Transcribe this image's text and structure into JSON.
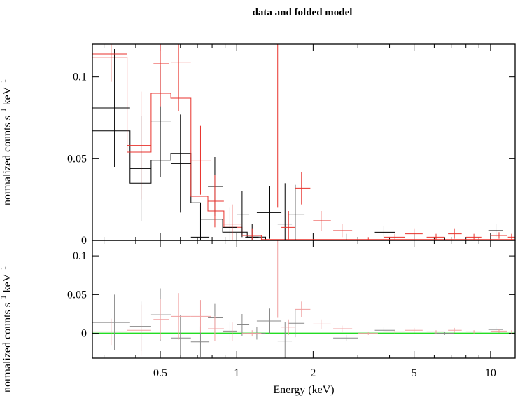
{
  "chart_data": {
    "type": "scatter",
    "title": "data and folded model",
    "xlabel": "Energy (keV)",
    "xscale": "log",
    "xlim": [
      0.27,
      12.5
    ],
    "x_ticks": [
      {
        "value": 0.5,
        "label": "0.5"
      },
      {
        "value": 1,
        "label": "1"
      },
      {
        "value": 2,
        "label": "2"
      },
      {
        "value": 5,
        "label": "5"
      },
      {
        "value": 10,
        "label": "10"
      }
    ],
    "panels": [
      {
        "name": "top",
        "ylabel_main": "normalized counts s",
        "ylabel_sup": "−1",
        "ylabel_unit": " keV",
        "ylim": [
          0,
          0.12
        ],
        "y_ticks": [
          {
            "value": 0,
            "label": "0"
          },
          {
            "value": 0.05,
            "label": "0.05"
          },
          {
            "value": 0.1,
            "label": "0.1"
          }
        ],
        "series": [
          {
            "color": "#000000",
            "data": [
              {
                "x": 0.33,
                "xlo": 0.27,
                "xhi": 0.38,
                "y": 0.081,
                "err": 0.036
              },
              {
                "x": 0.42,
                "xlo": 0.38,
                "xhi": 0.46,
                "y": 0.044,
                "err": 0.032
              },
              {
                "x": 0.5,
                "xlo": 0.46,
                "xhi": 0.55,
                "y": 0.073,
                "err": 0.034
              },
              {
                "x": 0.6,
                "xlo": 0.55,
                "xhi": 0.66,
                "y": 0.047,
                "err": 0.03
              },
              {
                "x": 0.72,
                "xlo": 0.66,
                "xhi": 0.78,
                "y": 0.002,
                "err": 0.02
              },
              {
                "x": 0.82,
                "xlo": 0.77,
                "xhi": 0.88,
                "y": 0.033,
                "err": 0.018
              },
              {
                "x": 0.94,
                "xlo": 0.88,
                "xhi": 1.0,
                "y": 0.008,
                "err": 0.012
              },
              {
                "x": 1.05,
                "xlo": 1.0,
                "xhi": 1.12,
                "y": 0.016,
                "err": 0.014
              },
              {
                "x": 1.15,
                "xlo": 1.08,
                "xhi": 1.22,
                "y": 0.002,
                "err": 0.008
              },
              {
                "x": 1.35,
                "xlo": 1.2,
                "xhi": 1.5,
                "y": 0.017,
                "err": 0.016
              },
              {
                "x": 1.55,
                "xlo": 1.45,
                "xhi": 1.65,
                "y": 0.01,
                "err": 0.025
              },
              {
                "x": 1.7,
                "xlo": 1.6,
                "xhi": 1.85,
                "y": 0.016,
                "err": 0.018
              },
              {
                "x": 2.7,
                "xlo": 2.4,
                "xhi": 3.0,
                "y": 0.0,
                "err": 0.004
              },
              {
                "x": 3.8,
                "xlo": 3.5,
                "xhi": 4.2,
                "y": 0.005,
                "err": 0.004
              },
              {
                "x": 6.6,
                "xlo": 6.0,
                "xhi": 7.2,
                "y": 0.0,
                "err": 0.002
              },
              {
                "x": 10.5,
                "xlo": 9.8,
                "xhi": 11.2,
                "y": 0.006,
                "err": 0.004
              }
            ]
          },
          {
            "color": "#e8322c",
            "data": [
              {
                "x": 0.32,
                "xlo": 0.27,
                "xhi": 0.37,
                "y": 0.114,
                "err": 0.017
              },
              {
                "x": 0.42,
                "xlo": 0.37,
                "xhi": 0.46,
                "y": 0.058,
                "err": 0.033
              },
              {
                "x": 0.5,
                "xlo": 0.47,
                "xhi": 0.54,
                "y": 0.108,
                "err": 0.026
              },
              {
                "x": 0.59,
                "xlo": 0.55,
                "xhi": 0.66,
                "y": 0.109,
                "err": 0.03
              },
              {
                "x": 0.72,
                "xlo": 0.66,
                "xhi": 0.79,
                "y": 0.049,
                "err": 0.021
              },
              {
                "x": 0.82,
                "xlo": 0.77,
                "xhi": 0.89,
                "y": 0.024,
                "err": 0.016
              },
              {
                "x": 0.96,
                "xlo": 0.88,
                "xhi": 1.05,
                "y": 0.01,
                "err": 0.012
              },
              {
                "x": 1.15,
                "xlo": 1.05,
                "xhi": 1.25,
                "y": 0.003,
                "err": 0.004
              },
              {
                "x": 1.45,
                "xlo": 1.45,
                "xhi": 1.45,
                "y": 0.08,
                "err": 0.06
              },
              {
                "x": 1.6,
                "xlo": 1.5,
                "xhi": 1.7,
                "y": 0.008,
                "err": 0.01
              },
              {
                "x": 1.8,
                "xlo": 1.7,
                "xhi": 1.95,
                "y": 0.032,
                "err": 0.01
              },
              {
                "x": 2.15,
                "xlo": 2.0,
                "xhi": 2.35,
                "y": 0.012,
                "err": 0.006
              },
              {
                "x": 2.6,
                "xlo": 2.4,
                "xhi": 2.85,
                "y": 0.006,
                "err": 0.004
              },
              {
                "x": 3.3,
                "xlo": 3.0,
                "xhi": 3.6,
                "y": 0.0,
                "err": 0.002
              },
              {
                "x": 4.2,
                "xlo": 3.8,
                "xhi": 4.6,
                "y": 0.002,
                "err": 0.002
              },
              {
                "x": 5.0,
                "xlo": 4.6,
                "xhi": 5.4,
                "y": 0.004,
                "err": 0.003
              },
              {
                "x": 6.1,
                "xlo": 5.6,
                "xhi": 6.6,
                "y": 0.002,
                "err": 0.002
              },
              {
                "x": 7.2,
                "xlo": 6.8,
                "xhi": 7.7,
                "y": 0.004,
                "err": 0.003
              },
              {
                "x": 8.6,
                "xlo": 8.0,
                "xhi": 9.2,
                "y": 0.002,
                "err": 0.002
              },
              {
                "x": 10.8,
                "xlo": 10.0,
                "xhi": 11.6,
                "y": 0.003,
                "err": 0.002
              },
              {
                "x": 12.1,
                "xlo": 11.7,
                "xhi": 12.5,
                "y": 0.002,
                "err": 0.002
              }
            ]
          }
        ],
        "models": [
          {
            "color": "#000000",
            "steps": [
              {
                "x0": 0.27,
                "x1": 0.38,
                "y": 0.067
              },
              {
                "x0": 0.38,
                "x1": 0.46,
                "y": 0.035
              },
              {
                "x0": 0.46,
                "x1": 0.55,
                "y": 0.049
              },
              {
                "x0": 0.55,
                "x1": 0.66,
                "y": 0.053
              },
              {
                "x0": 0.66,
                "x1": 0.72,
                "y": 0.023
              },
              {
                "x0": 0.72,
                "x1": 0.88,
                "y": 0.013
              },
              {
                "x0": 0.88,
                "x1": 1.1,
                "y": 0.005
              },
              {
                "x0": 1.1,
                "x1": 1.3,
                "y": 0.002
              },
              {
                "x0": 1.3,
                "x1": 12.5,
                "y": 0.0003
              }
            ]
          },
          {
            "color": "#e8322c",
            "steps": [
              {
                "x0": 0.27,
                "x1": 0.37,
                "y": 0.112
              },
              {
                "x0": 0.37,
                "x1": 0.46,
                "y": 0.054
              },
              {
                "x0": 0.46,
                "x1": 0.55,
                "y": 0.09
              },
              {
                "x0": 0.55,
                "x1": 0.66,
                "y": 0.087
              },
              {
                "x0": 0.66,
                "x1": 0.77,
                "y": 0.027
              },
              {
                "x0": 0.77,
                "x1": 0.89,
                "y": 0.018
              },
              {
                "x0": 0.89,
                "x1": 1.05,
                "y": 0.008
              },
              {
                "x0": 1.05,
                "x1": 1.25,
                "y": 0.003
              },
              {
                "x0": 1.25,
                "x1": 12.5,
                "y": 0.0005
              }
            ]
          }
        ]
      },
      {
        "name": "bottom",
        "ylabel_main": "normalized counts s",
        "ylabel_sup": "−1",
        "ylabel_unit": " keV",
        "ylim": [
          -0.032,
          0.12
        ],
        "y_ticks": [
          {
            "value": 0,
            "label": "0"
          },
          {
            "value": 0.05,
            "label": "0.05"
          },
          {
            "value": 0.1,
            "label": "0.1"
          }
        ],
        "zero_line_color": "#22dd22",
        "series": [
          {
            "color": "#888888",
            "data": [
              {
                "x": 0.33,
                "xlo": 0.27,
                "xhi": 0.38,
                "y": 0.014,
                "err": 0.036
              },
              {
                "x": 0.42,
                "xlo": 0.38,
                "xhi": 0.46,
                "y": 0.009,
                "err": 0.032
              },
              {
                "x": 0.5,
                "xlo": 0.46,
                "xhi": 0.55,
                "y": 0.024,
                "err": 0.034
              },
              {
                "x": 0.6,
                "xlo": 0.55,
                "xhi": 0.66,
                "y": -0.006,
                "err": 0.03
              },
              {
                "x": 0.72,
                "xlo": 0.66,
                "xhi": 0.78,
                "y": -0.011,
                "err": 0.02
              },
              {
                "x": 0.82,
                "xlo": 0.77,
                "xhi": 0.88,
                "y": 0.02,
                "err": 0.018
              },
              {
                "x": 0.94,
                "xlo": 0.88,
                "xhi": 1.0,
                "y": 0.003,
                "err": 0.012
              },
              {
                "x": 1.05,
                "xlo": 1.0,
                "xhi": 1.12,
                "y": 0.011,
                "err": 0.014
              },
              {
                "x": 1.2,
                "xlo": 1.1,
                "xhi": 1.3,
                "y": 0.0,
                "err": 0.008
              },
              {
                "x": 1.35,
                "xlo": 1.2,
                "xhi": 1.5,
                "y": 0.016,
                "err": 0.016
              },
              {
                "x": 1.55,
                "xlo": 1.45,
                "xhi": 1.65,
                "y": -0.01,
                "err": 0.025
              },
              {
                "x": 1.7,
                "xlo": 1.6,
                "xhi": 1.85,
                "y": 0.013,
                "err": 0.018
              },
              {
                "x": 2.7,
                "xlo": 2.4,
                "xhi": 3.0,
                "y": -0.006,
                "err": 0.004
              },
              {
                "x": 3.8,
                "xlo": 3.5,
                "xhi": 4.2,
                "y": 0.004,
                "err": 0.004
              },
              {
                "x": 6.6,
                "xlo": 6.0,
                "xhi": 7.2,
                "y": 0.0,
                "err": 0.002
              },
              {
                "x": 10.5,
                "xlo": 9.8,
                "xhi": 11.2,
                "y": 0.005,
                "err": 0.004
              }
            ]
          },
          {
            "color": "#f0a0a0",
            "data": [
              {
                "x": 0.32,
                "xlo": 0.27,
                "xhi": 0.37,
                "y": 0.002,
                "err": 0.017
              },
              {
                "x": 0.42,
                "xlo": 0.37,
                "xhi": 0.46,
                "y": 0.004,
                "err": 0.033
              },
              {
                "x": 0.5,
                "xlo": 0.47,
                "xhi": 0.54,
                "y": 0.018,
                "err": 0.026
              },
              {
                "x": 0.59,
                "xlo": 0.55,
                "xhi": 0.66,
                "y": 0.022,
                "err": 0.03
              },
              {
                "x": 0.72,
                "xlo": 0.66,
                "xhi": 0.79,
                "y": 0.022,
                "err": 0.021
              },
              {
                "x": 0.82,
                "xlo": 0.77,
                "xhi": 0.89,
                "y": 0.006,
                "err": 0.016
              },
              {
                "x": 0.96,
                "xlo": 0.88,
                "xhi": 1.05,
                "y": 0.002,
                "err": 0.012
              },
              {
                "x": 1.15,
                "xlo": 1.05,
                "xhi": 1.25,
                "y": 0.0,
                "err": 0.004
              },
              {
                "x": 1.45,
                "xlo": 1.45,
                "xhi": 1.45,
                "y": 0.08,
                "err": 0.06
              },
              {
                "x": 1.6,
                "xlo": 1.5,
                "xhi": 1.7,
                "y": 0.008,
                "err": 0.01
              },
              {
                "x": 1.8,
                "xlo": 1.7,
                "xhi": 1.95,
                "y": 0.031,
                "err": 0.01
              },
              {
                "x": 2.15,
                "xlo": 2.0,
                "xhi": 2.35,
                "y": 0.012,
                "err": 0.006
              },
              {
                "x": 2.6,
                "xlo": 2.4,
                "xhi": 2.85,
                "y": 0.006,
                "err": 0.004
              },
              {
                "x": 3.3,
                "xlo": 3.0,
                "xhi": 3.6,
                "y": 0.0,
                "err": 0.002
              },
              {
                "x": 4.2,
                "xlo": 3.8,
                "xhi": 4.6,
                "y": 0.002,
                "err": 0.002
              },
              {
                "x": 5.0,
                "xlo": 4.6,
                "xhi": 5.4,
                "y": 0.004,
                "err": 0.003
              },
              {
                "x": 6.1,
                "xlo": 5.6,
                "xhi": 6.6,
                "y": 0.002,
                "err": 0.002
              },
              {
                "x": 7.2,
                "xlo": 6.8,
                "xhi": 7.7,
                "y": 0.004,
                "err": 0.003
              },
              {
                "x": 8.6,
                "xlo": 8.0,
                "xhi": 9.2,
                "y": 0.002,
                "err": 0.002
              },
              {
                "x": 10.8,
                "xlo": 10.0,
                "xhi": 11.6,
                "y": 0.003,
                "err": 0.002
              },
              {
                "x": 12.1,
                "xlo": 11.7,
                "xhi": 12.5,
                "y": 0.002,
                "err": 0.002
              }
            ]
          }
        ]
      }
    ]
  }
}
